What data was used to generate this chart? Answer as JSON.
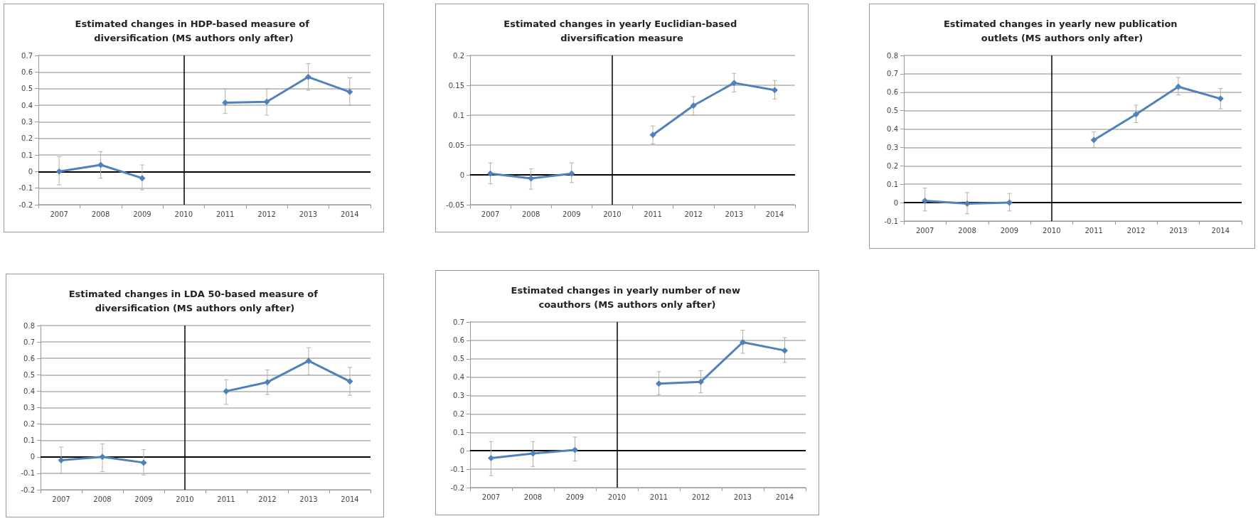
{
  "chart_data": [
    {
      "type": "line",
      "title": "Estimated changes in HDP-based measure of diversification (MS authors only after)",
      "categories": [
        "2007",
        "2008",
        "2009",
        "2010",
        "2011",
        "2012",
        "2013",
        "2014"
      ],
      "series": [
        {
          "color": "#4f81bd",
          "values": [
            0,
            0.04,
            -0.04,
            null,
            0.415,
            0.42,
            0.57,
            0.48
          ],
          "errors": [
            [
              -0.08,
              0.09
            ],
            [
              -0.04,
              0.12
            ],
            [
              -0.11,
              0.04
            ],
            null,
            [
              0.35,
              0.5
            ],
            [
              0.34,
              0.5
            ],
            [
              0.49,
              0.65
            ],
            [
              0.4,
              0.565
            ]
          ]
        }
      ],
      "ylim": [
        -0.2,
        0.7
      ],
      "yticks": [
        -0.2,
        -0.1,
        0,
        0.1,
        0.2,
        0.3,
        0.4,
        0.5,
        0.6,
        0.7
      ],
      "grid": "y",
      "marker": "diamond",
      "ref_lines": [
        {
          "axis": "x",
          "value": "2010"
        },
        {
          "axis": "y",
          "value": 0
        }
      ]
    },
    {
      "type": "line",
      "title": "Estimated changes in yearly Euclidian-based diversification measure",
      "categories": [
        "2007",
        "2008",
        "2009",
        "2010",
        "2011",
        "2012",
        "2013",
        "2014"
      ],
      "series": [
        {
          "color": "#4f81bd",
          "values": [
            0.002,
            -0.006,
            0.002,
            null,
            0.067,
            0.116,
            0.154,
            0.142
          ],
          "errors": [
            [
              -0.015,
              0.02
            ],
            [
              -0.024,
              0.01
            ],
            [
              -0.013,
              0.02
            ],
            null,
            [
              0.052,
              0.082
            ],
            [
              0.1,
              0.131
            ],
            [
              0.139,
              0.17
            ],
            [
              0.127,
              0.158
            ]
          ]
        }
      ],
      "ylim": [
        -0.05,
        0.2
      ],
      "yticks": [
        -0.05,
        0,
        0.05,
        0.1,
        0.15,
        0.2
      ],
      "grid": "y",
      "marker": "diamond",
      "ref_lines": [
        {
          "axis": "x",
          "value": "2010"
        },
        {
          "axis": "y",
          "value": 0
        }
      ]
    },
    {
      "type": "line",
      "title": "Estimated changes in yearly new publication outlets (MS authors only after)",
      "categories": [
        "2007",
        "2008",
        "2009",
        "2010",
        "2011",
        "2012",
        "2013",
        "2014"
      ],
      "series": [
        {
          "color": "#4f81bd",
          "values": [
            0.01,
            -0.005,
            0,
            null,
            0.34,
            0.48,
            0.63,
            0.565
          ],
          "errors": [
            [
              -0.045,
              0.08
            ],
            [
              -0.06,
              0.055
            ],
            [
              -0.045,
              0.05
            ],
            null,
            [
              0.3,
              0.385
            ],
            [
              0.435,
              0.53
            ],
            [
              0.585,
              0.68
            ],
            [
              0.51,
              0.62
            ]
          ]
        }
      ],
      "ylim": [
        -0.1,
        0.8
      ],
      "yticks": [
        -0.1,
        0,
        0.1,
        0.2,
        0.3,
        0.4,
        0.5,
        0.6,
        0.7,
        0.8
      ],
      "grid": "y",
      "marker": "diamond",
      "ref_lines": [
        {
          "axis": "x",
          "value": "2010"
        },
        {
          "axis": "y",
          "value": 0
        }
      ]
    },
    {
      "type": "line",
      "title": "Estimated changes in LDA 50-based measure of diversification (MS authors only after)",
      "categories": [
        "2007",
        "2008",
        "2009",
        "2010",
        "2011",
        "2012",
        "2013",
        "2014"
      ],
      "series": [
        {
          "color": "#4f81bd",
          "values": [
            -0.02,
            0,
            -0.035,
            null,
            0.4,
            0.455,
            0.585,
            0.46
          ],
          "errors": [
            [
              -0.1,
              0.06
            ],
            [
              -0.09,
              0.08
            ],
            [
              -0.11,
              0.045
            ],
            null,
            [
              0.32,
              0.47
            ],
            [
              0.38,
              0.53
            ],
            [
              0.5,
              0.665
            ],
            [
              0.375,
              0.545
            ]
          ]
        }
      ],
      "ylim": [
        -0.2,
        0.8
      ],
      "yticks": [
        -0.2,
        -0.1,
        0,
        0.1,
        0.2,
        0.3,
        0.4,
        0.5,
        0.6,
        0.7,
        0.8
      ],
      "grid": "y",
      "marker": "diamond",
      "ref_lines": [
        {
          "axis": "x",
          "value": "2010"
        },
        {
          "axis": "y",
          "value": 0
        }
      ]
    },
    {
      "type": "line",
      "title": "Estimated changes in yearly number of new coauthors (MS authors only after)",
      "categories": [
        "2007",
        "2008",
        "2009",
        "2010",
        "2011",
        "2012",
        "2013",
        "2014"
      ],
      "series": [
        {
          "color": "#4f81bd",
          "values": [
            -0.04,
            -0.015,
            0.005,
            null,
            0.365,
            0.375,
            0.59,
            0.545
          ],
          "errors": [
            [
              -0.135,
              0.05
            ],
            [
              -0.085,
              0.05
            ],
            [
              -0.055,
              0.075
            ],
            null,
            [
              0.305,
              0.43
            ],
            [
              0.315,
              0.435
            ],
            [
              0.53,
              0.655
            ],
            [
              0.48,
              0.615
            ]
          ]
        }
      ],
      "ylim": [
        -0.2,
        0.7
      ],
      "yticks": [
        -0.2,
        -0.1,
        0,
        0.1,
        0.2,
        0.3,
        0.4,
        0.5,
        0.6,
        0.7
      ],
      "grid": "y",
      "marker": "diamond",
      "ref_lines": [
        {
          "axis": "x",
          "value": "2010"
        },
        {
          "axis": "y",
          "value": 0
        }
      ]
    }
  ]
}
